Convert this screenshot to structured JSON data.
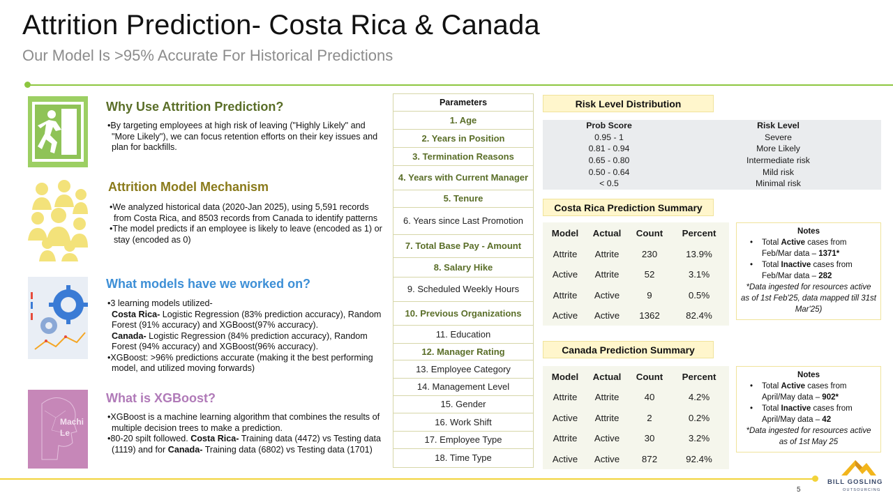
{
  "header": {
    "title": "Attrition Prediction- Costa Rica & Canada",
    "subtitle": "Our Model Is >95% Accurate For Historical Predictions"
  },
  "colors": {
    "accent_green": "#8dc63f",
    "heading_green": "#5a6e28",
    "heading_olive": "#8a7a1a",
    "heading_blue": "#3d8fd6",
    "heading_purple": "#b07ab8",
    "footer_yellow": "#f2d33a"
  },
  "sections": {
    "why": {
      "icon": "exit-sign-icon",
      "heading": "Why Use Attrition Prediction?",
      "bullets": [
        "•By targeting employees at high risk of leaving (\"Highly Likely\" and \"More Likely\"), we can focus retention efforts on their key issues and plan for backfills."
      ]
    },
    "mechanism": {
      "icon": "people-group-icon",
      "heading": "Attrition Model Mechanism",
      "bullets": [
        "•We analyzed historical data (2020-Jan 2025), using 5,591 records from Costa Rica, and 8503 records from Canada to identify patterns",
        "•The model predicts if an employee is likely to leave (encoded as 1) or stay (encoded as 0)"
      ]
    },
    "models": {
      "icon": "gears-analytics-icon",
      "heading": "What models have we worked on?",
      "intro": "•3 learning models utilized-",
      "costa_label": "Costa Rica-",
      "costa_text": " Logistic Regression (83% prediction accuracy), Random Forest (91% accuracy) and XGBoost(97% accuracy).",
      "canada_label": "Canada-",
      "canada_text": " Logistic Regression (84% prediction accuracy), Random Forest (94% accuracy) and XGBoost(96% accuracy).",
      "xgb_line": "•XGBoost: >96% predictions accurate (making it the best performing model, and utilized moving forwards)"
    },
    "xgboost": {
      "icon": "machine-learning-head-icon",
      "image_text": "Machi Le",
      "heading": "What is XGBoost?",
      "bullet1": "•XGBoost is a machine learning algorithm that combines the results of multiple decision trees to make a prediction.",
      "b2_part1": "•80-20 spilt followed. ",
      "b2_costa": "Costa Rica-",
      "b2_part2": " Training data (4472) vs Testing data (1119) and for ",
      "b2_canada": "Canada-",
      "b2_part3": " Training data (6802) vs Testing data (1701)"
    }
  },
  "parameters": {
    "header": "Parameters",
    "items": [
      {
        "label": "1. Age",
        "bold": true
      },
      {
        "label": "2. Years in Position",
        "bold": true
      },
      {
        "label": "3. Termination Reasons",
        "bold": true
      },
      {
        "label": "4. Years with Current Manager",
        "bold": true
      },
      {
        "label": "5. Tenure",
        "bold": true
      },
      {
        "label": "6. Years since Last Promotion",
        "bold": false
      },
      {
        "label": "7. Total Base Pay - Amount",
        "bold": true
      },
      {
        "label": "8. Salary Hike",
        "bold": true
      },
      {
        "label": "9. Scheduled Weekly Hours",
        "bold": false
      },
      {
        "label": "10. Previous Organizations",
        "bold": true
      },
      {
        "label": "11. Education",
        "bold": false
      },
      {
        "label": "12. Manager Rating",
        "bold": true
      },
      {
        "label": "13. Employee Category",
        "bold": false
      },
      {
        "label": "14. Management Level",
        "bold": false
      },
      {
        "label": "15. Gender",
        "bold": false
      },
      {
        "label": "16. Work Shift",
        "bold": false
      },
      {
        "label": "17. Employee Type",
        "bold": false
      },
      {
        "label": "18. Time Type",
        "bold": false
      }
    ]
  },
  "risk": {
    "title": "Risk Level Distribution",
    "col1": "Prob Score",
    "col2": "Risk Level",
    "rows": [
      [
        "0.95 - 1",
        "Severe"
      ],
      [
        "0.81 - 0.94",
        "More Likely"
      ],
      [
        "0.65 - 0.80",
        "Intermediate risk"
      ],
      [
        "0.50 - 0.64",
        "Mild risk"
      ],
      [
        "< 0.5",
        "Minimal risk"
      ]
    ]
  },
  "costa": {
    "title": "Costa Rica Prediction Summary",
    "headers": [
      "Model",
      "Actual",
      "Count",
      "Percent"
    ],
    "rows": [
      [
        "Attrite",
        "Attrite",
        "230",
        "13.9%"
      ],
      [
        "Active",
        "Attrite",
        "52",
        "3.1%"
      ],
      [
        "Attrite",
        "Active",
        "9",
        "0.5%"
      ],
      [
        "Active",
        "Active",
        "1362",
        "82.4%"
      ]
    ],
    "notes": {
      "header": "Notes",
      "n1_pre": "Total ",
      "n1_bold": "Active",
      "n1_mid": " cases from Feb/Mar data – ",
      "n1_val": "1371*",
      "n2_pre": "Total ",
      "n2_bold": "Inactive",
      "n2_mid": " cases from Feb/Mar data – ",
      "n2_val": "282",
      "foot": "*Data ingested for resources active as of 1st Feb'25, data mapped till 31st Mar'25)"
    }
  },
  "canada": {
    "title": "Canada Prediction Summary",
    "headers": [
      "Model",
      "Actual",
      "Count",
      "Percent"
    ],
    "rows": [
      [
        "Attrite",
        "Attrite",
        "40",
        "4.2%"
      ],
      [
        "Active",
        "Attrite",
        "2",
        "0.2%"
      ],
      [
        "Attrite",
        "Active",
        "30",
        "3.2%"
      ],
      [
        "Active",
        "Active",
        "872",
        "92.4%"
      ]
    ],
    "notes": {
      "header": "Notes",
      "n1_pre": "Total ",
      "n1_bold": "Active",
      "n1_mid": " cases from April/May data – ",
      "n1_val": "902*",
      "n2_pre": "Total ",
      "n2_bold": "Inactive",
      "n2_mid": " cases from April/May data – ",
      "n2_val": "42",
      "foot": "*Data ingested for resources active as of 1st May 25"
    }
  },
  "footer": {
    "page_number": "5",
    "logo_name": "BILL GOSLING",
    "logo_sub": "OUTSOURCING"
  }
}
